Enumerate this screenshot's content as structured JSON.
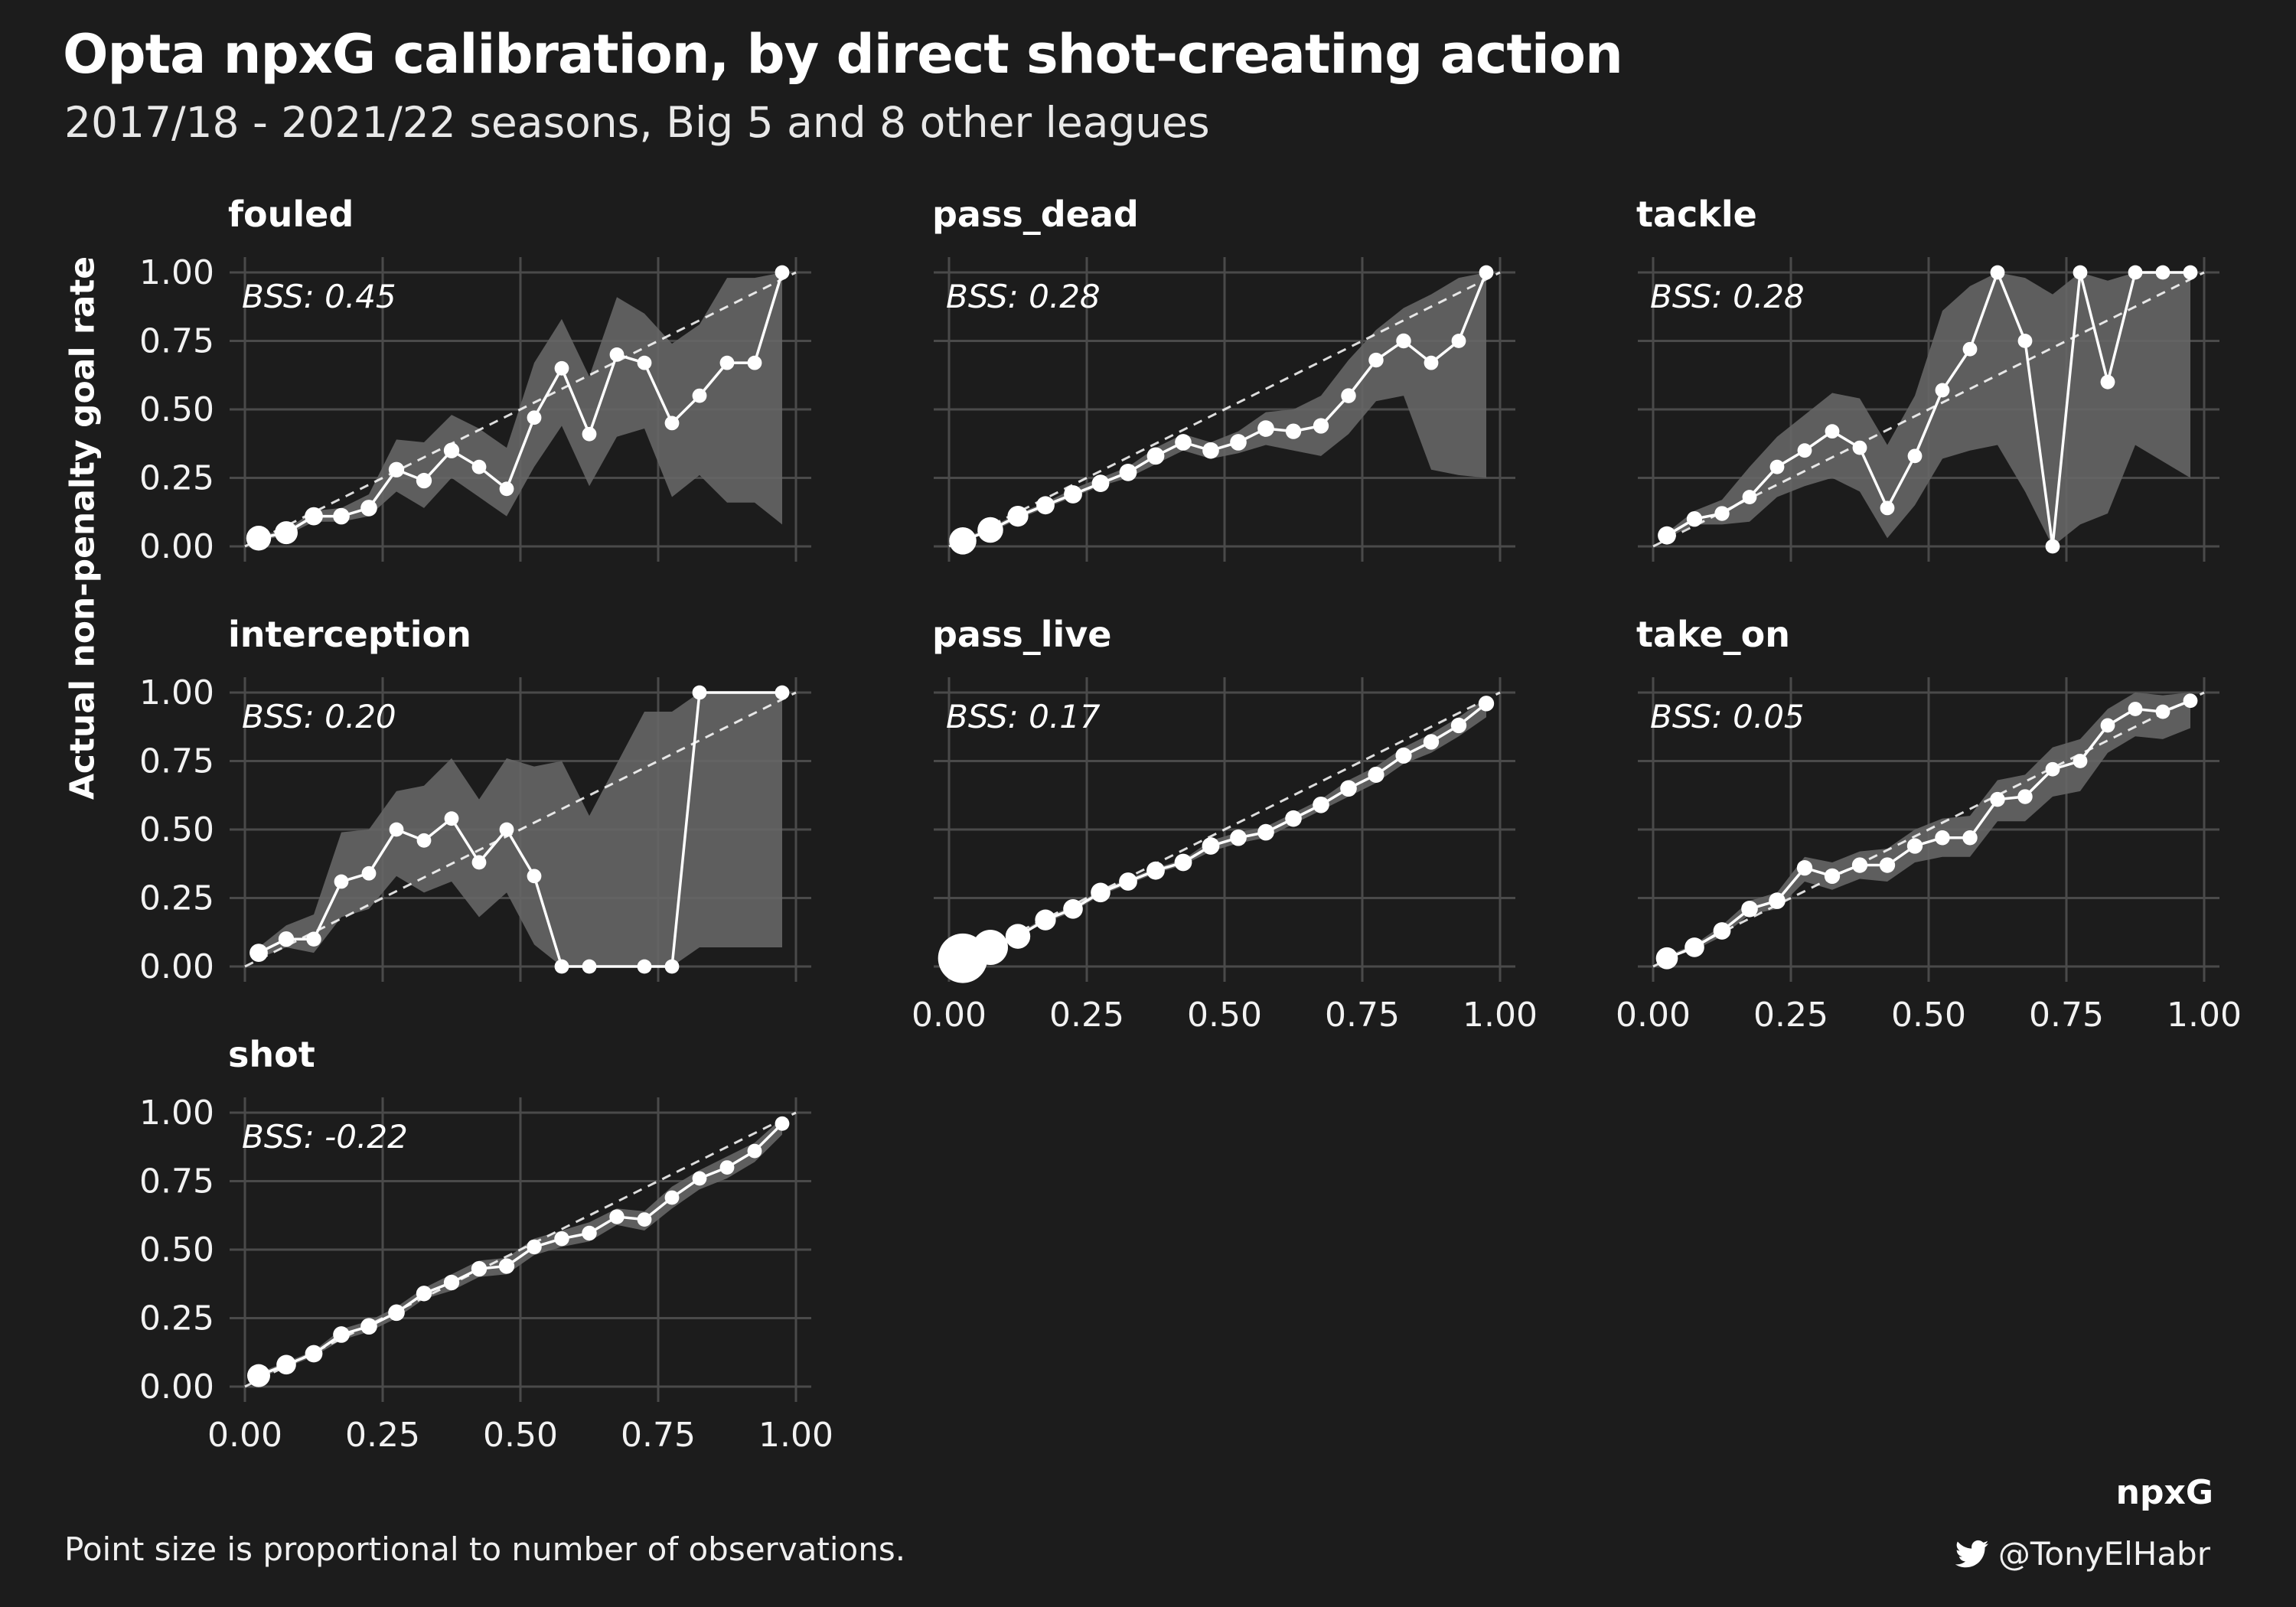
{
  "title": "Opta npxG calibration, by direct shot-creating action",
  "subtitle": "2017/18 - 2021/22 seasons, Big 5 and 8 other leagues",
  "caption": "Point size is proportional to number of observations.",
  "attribution": "@TonyElHabr",
  "colors": {
    "background": "#1c1c1c",
    "grid": "#4a4a4a",
    "ribbon": "#666666",
    "line": "#ffffff",
    "reference": "#ffffff"
  },
  "chart_data": {
    "type": "line",
    "xlabel": "npxG",
    "ylabel": "Actual non-penalty goal rate",
    "xlim": [
      0,
      1
    ],
    "ylim": [
      0,
      1
    ],
    "x_ticks": [
      "0.00",
      "0.25",
      "0.50",
      "0.75",
      "1.00"
    ],
    "y_ticks": [
      "0.00",
      "0.25",
      "0.50",
      "0.75",
      "1.00"
    ],
    "grid": true,
    "reference_line": "y = x (dashed)",
    "panels": [
      {
        "name": "fouled",
        "bss": "BSS: 0.45",
        "x": [
          0.025,
          0.075,
          0.125,
          0.175,
          0.225,
          0.275,
          0.325,
          0.375,
          0.425,
          0.475,
          0.525,
          0.575,
          0.625,
          0.675,
          0.725,
          0.775,
          0.825,
          0.875,
          0.925,
          0.975
        ],
        "y": [
          0.03,
          0.05,
          0.11,
          0.11,
          0.14,
          0.28,
          0.24,
          0.35,
          0.29,
          0.21,
          0.47,
          0.65,
          0.41,
          0.7,
          0.67,
          0.45,
          0.55,
          0.67,
          0.67,
          1.0
        ],
        "lower": [
          0.02,
          0.04,
          0.09,
          0.09,
          0.11,
          0.2,
          0.14,
          0.25,
          0.18,
          0.11,
          0.29,
          0.44,
          0.22,
          0.4,
          0.43,
          0.18,
          0.26,
          0.16,
          0.16,
          0.08
        ],
        "upper": [
          0.04,
          0.06,
          0.13,
          0.14,
          0.19,
          0.39,
          0.38,
          0.48,
          0.43,
          0.36,
          0.67,
          0.83,
          0.62,
          0.91,
          0.85,
          0.74,
          0.81,
          0.98,
          0.98,
          1.0
        ],
        "n": [
          9,
          7,
          3,
          2,
          2,
          1.5,
          1.5,
          1.5,
          1,
          1,
          1,
          1,
          1,
          1,
          1,
          1,
          1,
          1,
          1,
          1
        ]
      },
      {
        "name": "pass_dead",
        "bss": "BSS: 0.28",
        "x": [
          0.025,
          0.075,
          0.125,
          0.175,
          0.225,
          0.275,
          0.325,
          0.375,
          0.425,
          0.475,
          0.525,
          0.575,
          0.625,
          0.675,
          0.725,
          0.775,
          0.825,
          0.875,
          0.925,
          0.975
        ],
        "y": [
          0.02,
          0.06,
          0.11,
          0.15,
          0.19,
          0.23,
          0.27,
          0.33,
          0.38,
          0.35,
          0.38,
          0.43,
          0.42,
          0.44,
          0.55,
          0.68,
          0.75,
          0.67,
          0.75,
          1.0
        ],
        "lower": [
          0.02,
          0.05,
          0.1,
          0.14,
          0.18,
          0.22,
          0.25,
          0.3,
          0.35,
          0.32,
          0.34,
          0.37,
          0.35,
          0.33,
          0.41,
          0.53,
          0.55,
          0.28,
          0.26,
          0.25
        ],
        "upper": [
          0.03,
          0.07,
          0.12,
          0.16,
          0.21,
          0.25,
          0.29,
          0.36,
          0.41,
          0.38,
          0.42,
          0.49,
          0.5,
          0.55,
          0.68,
          0.79,
          0.87,
          0.92,
          0.98,
          1.0
        ],
        "n": [
          12,
          10,
          5,
          3,
          3,
          2.5,
          2.5,
          2.5,
          2,
          2,
          2,
          2,
          1.5,
          1.5,
          1.2,
          1.2,
          1.2,
          1,
          1,
          1
        ]
      },
      {
        "name": "tackle",
        "bss": "BSS: 0.28",
        "x": [
          0.025,
          0.075,
          0.125,
          0.175,
          0.225,
          0.275,
          0.325,
          0.375,
          0.425,
          0.475,
          0.525,
          0.575,
          0.625,
          0.675,
          0.725,
          0.775,
          0.825,
          0.875,
          0.925,
          0.975
        ],
        "y": [
          0.04,
          0.1,
          0.12,
          0.18,
          0.29,
          0.35,
          0.42,
          0.36,
          0.14,
          0.33,
          0.57,
          0.72,
          1.0,
          0.75,
          0.0,
          1.0,
          0.6,
          1.0,
          1.0,
          1.0
        ],
        "lower": [
          0.03,
          0.08,
          0.08,
          0.09,
          0.18,
          0.22,
          0.25,
          0.2,
          0.03,
          0.15,
          0.32,
          0.35,
          0.37,
          0.2,
          0.0,
          0.08,
          0.12,
          0.37,
          0.31,
          0.25
        ],
        "upper": [
          0.05,
          0.13,
          0.17,
          0.29,
          0.4,
          0.48,
          0.56,
          0.54,
          0.37,
          0.55,
          0.86,
          0.95,
          1.0,
          0.98,
          0.92,
          1.0,
          0.97,
          1.0,
          1.0,
          1.0
        ],
        "n": [
          3,
          1.5,
          1.2,
          1,
          1,
          1,
          1,
          1,
          1,
          1,
          1,
          1,
          1,
          1,
          1,
          1,
          1,
          1,
          1,
          1
        ]
      },
      {
        "name": "interception",
        "bss": "BSS: 0.20",
        "x": [
          0.025,
          0.075,
          0.125,
          0.175,
          0.225,
          0.275,
          0.325,
          0.375,
          0.425,
          0.475,
          0.525,
          0.575,
          0.625,
          0.725,
          0.775,
          0.825,
          0.975
        ],
        "y": [
          0.05,
          0.1,
          0.1,
          0.31,
          0.34,
          0.5,
          0.46,
          0.54,
          0.38,
          0.5,
          0.33,
          0.0,
          0.0,
          0.0,
          0.0,
          1.0,
          1.0
        ],
        "lower": [
          0.03,
          0.07,
          0.05,
          0.18,
          0.21,
          0.33,
          0.27,
          0.31,
          0.18,
          0.27,
          0.08,
          0.0,
          0.0,
          0.0,
          0.0,
          0.07,
          0.07
        ],
        "upper": [
          0.07,
          0.15,
          0.19,
          0.49,
          0.5,
          0.64,
          0.66,
          0.76,
          0.61,
          0.76,
          0.73,
          0.75,
          0.55,
          0.93,
          0.93,
          1.0,
          1.0
        ],
        "n": [
          3,
          1.5,
          1.2,
          1,
          1,
          1,
          1,
          1,
          1,
          1,
          1,
          1,
          1,
          1,
          1,
          1,
          1
        ]
      },
      {
        "name": "pass_live",
        "bss": "BSS: 0.17",
        "x": [
          0.025,
          0.075,
          0.125,
          0.175,
          0.225,
          0.275,
          0.325,
          0.375,
          0.425,
          0.475,
          0.525,
          0.575,
          0.625,
          0.675,
          0.725,
          0.775,
          0.825,
          0.875,
          0.925,
          0.975
        ],
        "y": [
          0.03,
          0.07,
          0.11,
          0.17,
          0.21,
          0.27,
          0.31,
          0.35,
          0.38,
          0.44,
          0.47,
          0.49,
          0.54,
          0.59,
          0.65,
          0.7,
          0.77,
          0.82,
          0.88,
          0.96
        ],
        "lower": [
          0.03,
          0.07,
          0.11,
          0.16,
          0.2,
          0.26,
          0.3,
          0.34,
          0.37,
          0.42,
          0.45,
          0.47,
          0.52,
          0.57,
          0.62,
          0.67,
          0.74,
          0.78,
          0.84,
          0.91
        ],
        "upper": [
          0.04,
          0.08,
          0.12,
          0.18,
          0.22,
          0.28,
          0.32,
          0.36,
          0.39,
          0.46,
          0.49,
          0.51,
          0.56,
          0.61,
          0.68,
          0.73,
          0.8,
          0.85,
          0.91,
          0.98
        ],
        "n": [
          60,
          25,
          9,
          5,
          4,
          4,
          3,
          3,
          2.5,
          2.5,
          2,
          2,
          2,
          2,
          2,
          1.8,
          1.8,
          1.5,
          1.5,
          1.5
        ]
      },
      {
        "name": "take_on",
        "bss": "BSS: 0.05",
        "x": [
          0.025,
          0.075,
          0.125,
          0.175,
          0.225,
          0.275,
          0.325,
          0.375,
          0.425,
          0.475,
          0.525,
          0.575,
          0.625,
          0.675,
          0.725,
          0.775,
          0.825,
          0.875,
          0.925,
          0.975
        ],
        "y": [
          0.03,
          0.07,
          0.13,
          0.21,
          0.24,
          0.36,
          0.33,
          0.37,
          0.37,
          0.44,
          0.47,
          0.47,
          0.61,
          0.62,
          0.72,
          0.75,
          0.88,
          0.94,
          0.93,
          0.97
        ],
        "lower": [
          0.03,
          0.06,
          0.11,
          0.19,
          0.21,
          0.31,
          0.28,
          0.32,
          0.31,
          0.38,
          0.4,
          0.4,
          0.53,
          0.53,
          0.62,
          0.64,
          0.78,
          0.84,
          0.83,
          0.87
        ],
        "upper": [
          0.04,
          0.08,
          0.15,
          0.24,
          0.27,
          0.4,
          0.38,
          0.42,
          0.43,
          0.5,
          0.54,
          0.55,
          0.68,
          0.7,
          0.8,
          0.83,
          0.94,
          1.0,
          0.99,
          1.0
        ],
        "n": [
          6,
          4,
          2.5,
          2,
          2,
          1.5,
          1.5,
          1.5,
          1.5,
          1.5,
          1.2,
          1.2,
          1.2,
          1.2,
          1,
          1,
          1,
          1,
          1,
          1
        ]
      },
      {
        "name": "shot",
        "bss": "BSS: -0.22",
        "x": [
          0.025,
          0.075,
          0.125,
          0.175,
          0.225,
          0.275,
          0.325,
          0.375,
          0.425,
          0.475,
          0.525,
          0.575,
          0.625,
          0.675,
          0.725,
          0.775,
          0.825,
          0.875,
          0.925,
          0.975
        ],
        "y": [
          0.04,
          0.08,
          0.12,
          0.19,
          0.22,
          0.27,
          0.34,
          0.38,
          0.43,
          0.44,
          0.51,
          0.54,
          0.56,
          0.62,
          0.61,
          0.69,
          0.76,
          0.8,
          0.86,
          0.96
        ],
        "lower": [
          0.03,
          0.07,
          0.11,
          0.17,
          0.2,
          0.25,
          0.32,
          0.35,
          0.4,
          0.41,
          0.48,
          0.51,
          0.53,
          0.59,
          0.57,
          0.65,
          0.72,
          0.76,
          0.82,
          0.92
        ],
        "upper": [
          0.05,
          0.09,
          0.13,
          0.21,
          0.24,
          0.29,
          0.36,
          0.41,
          0.46,
          0.47,
          0.54,
          0.57,
          0.6,
          0.65,
          0.64,
          0.73,
          0.79,
          0.84,
          0.89,
          0.98
        ],
        "n": [
          7,
          4,
          2.5,
          2,
          2,
          2,
          1.5,
          1.5,
          1.5,
          1.5,
          1.2,
          1.2,
          1.2,
          1.2,
          1,
          1,
          1,
          1,
          1,
          1
        ]
      }
    ]
  }
}
